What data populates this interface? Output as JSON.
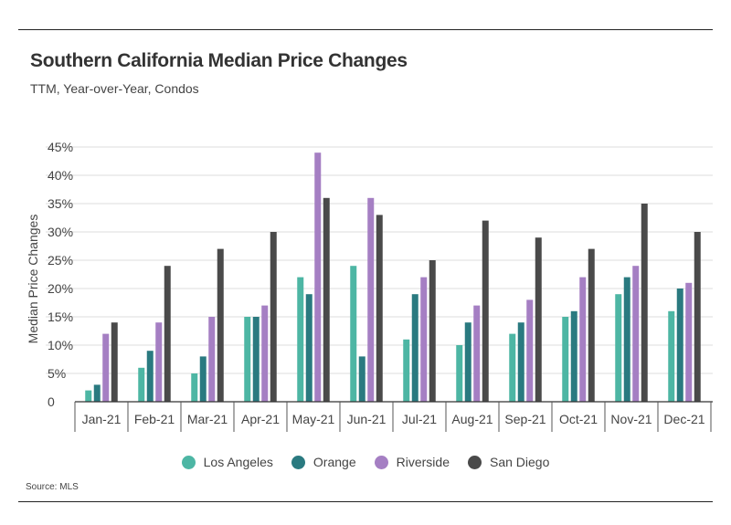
{
  "header": {
    "title": "Southern California Median Price Changes",
    "subtitle": "TTM, Year-over-Year, Condos"
  },
  "footer": {
    "source": "Source:  MLS"
  },
  "colors": {
    "Los Angeles": "#4db6a4",
    "Orange": "#2a7a80",
    "Riverside": "#a57fc3",
    "San Diego": "#4a4a4a"
  },
  "chart_data": {
    "type": "bar",
    "ylabel": "Median Price Changes",
    "ylim": [
      0,
      45
    ],
    "yticks": [
      "0",
      "5%",
      "10%",
      "15%",
      "20%",
      "25%",
      "30%",
      "35%",
      "40%",
      "45%"
    ],
    "grid": true,
    "legend_position": "bottom",
    "categories": [
      "Jan-21",
      "Feb-21",
      "Mar-21",
      "Apr-21",
      "May-21",
      "Jun-21",
      "Jul-21",
      "Aug-21",
      "Sep-21",
      "Oct-21",
      "Nov-21",
      "Dec-21"
    ],
    "series": [
      {
        "name": "Los Angeles",
        "values": [
          2,
          6,
          5,
          15,
          22,
          24,
          11,
          10,
          12,
          15,
          19,
          16
        ]
      },
      {
        "name": "Orange",
        "values": [
          3,
          9,
          8,
          15,
          19,
          8,
          19,
          14,
          14,
          16,
          22,
          20
        ]
      },
      {
        "name": "Riverside",
        "values": [
          12,
          14,
          15,
          17,
          44,
          36,
          22,
          17,
          18,
          22,
          24,
          21
        ]
      },
      {
        "name": "San Diego",
        "values": [
          14,
          24,
          27,
          30,
          36,
          33,
          25,
          32,
          29,
          27,
          35,
          30
        ]
      }
    ]
  }
}
